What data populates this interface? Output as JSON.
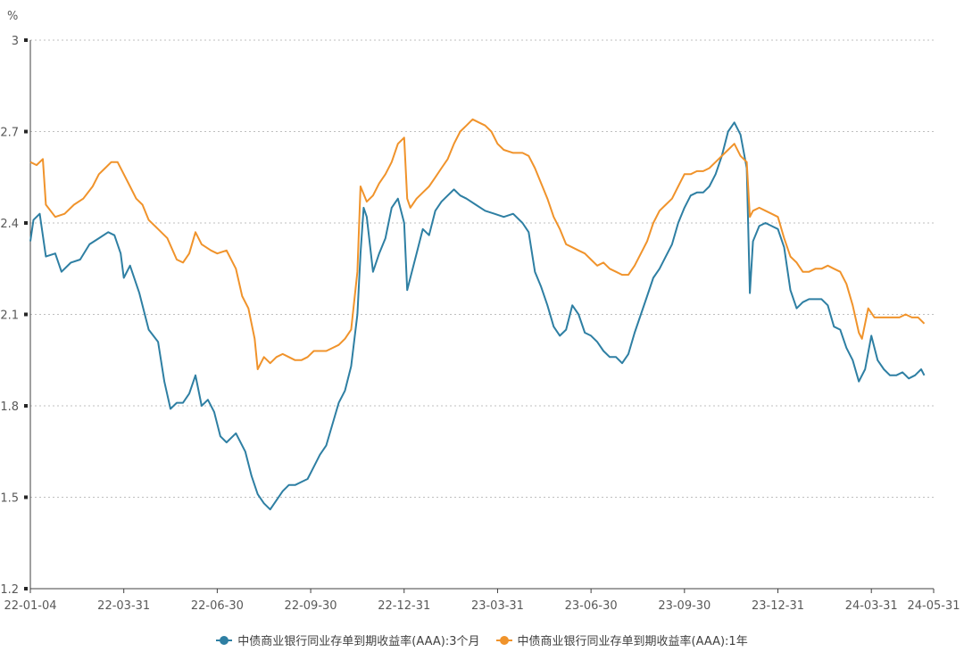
{
  "chart_data": {
    "type": "line",
    "unit": "%",
    "ylim": [
      1.2,
      3.0
    ],
    "y_ticks": [
      "1.2",
      "1.5",
      "1.8",
      "2.1",
      "2.4",
      "2.7",
      "3"
    ],
    "x_tick_labels": [
      "22-01-04",
      "22-03-31",
      "22-06-30",
      "22-09-30",
      "22-12-31",
      "23-03-31",
      "23-06-30",
      "23-09-30",
      "23-12-31",
      "24-03-31",
      "24-05-31"
    ],
    "x_range": [
      0,
      29
    ],
    "grid": true,
    "legend_position": "bottom",
    "series": [
      {
        "name": "中债商业银行同业存单到期收益率(AAA):3个月",
        "color": "#2e7fa3",
        "points": [
          [
            0,
            2.34
          ],
          [
            0.1,
            2.41
          ],
          [
            0.3,
            2.43
          ],
          [
            0.5,
            2.29
          ],
          [
            0.8,
            2.3
          ],
          [
            1.0,
            2.24
          ],
          [
            1.3,
            2.27
          ],
          [
            1.6,
            2.28
          ],
          [
            1.9,
            2.33
          ],
          [
            2.2,
            2.35
          ],
          [
            2.5,
            2.37
          ],
          [
            2.7,
            2.36
          ],
          [
            2.9,
            2.3
          ],
          [
            3.0,
            2.22
          ],
          [
            3.2,
            2.26
          ],
          [
            3.5,
            2.17
          ],
          [
            3.8,
            2.05
          ],
          [
            4.1,
            2.01
          ],
          [
            4.3,
            1.88
          ],
          [
            4.5,
            1.79
          ],
          [
            4.7,
            1.81
          ],
          [
            4.9,
            1.81
          ],
          [
            5.1,
            1.84
          ],
          [
            5.3,
            1.9
          ],
          [
            5.5,
            1.8
          ],
          [
            5.7,
            1.82
          ],
          [
            5.9,
            1.78
          ],
          [
            6.1,
            1.7
          ],
          [
            6.3,
            1.68
          ],
          [
            6.6,
            1.71
          ],
          [
            6.9,
            1.65
          ],
          [
            7.1,
            1.57
          ],
          [
            7.3,
            1.51
          ],
          [
            7.5,
            1.48
          ],
          [
            7.7,
            1.46
          ],
          [
            7.9,
            1.49
          ],
          [
            8.1,
            1.52
          ],
          [
            8.3,
            1.54
          ],
          [
            8.5,
            1.54
          ],
          [
            8.7,
            1.55
          ],
          [
            8.9,
            1.56
          ],
          [
            9.1,
            1.6
          ],
          [
            9.3,
            1.64
          ],
          [
            9.5,
            1.67
          ],
          [
            9.7,
            1.74
          ],
          [
            9.9,
            1.81
          ],
          [
            10.1,
            1.85
          ],
          [
            10.3,
            1.93
          ],
          [
            10.5,
            2.1
          ],
          [
            10.6,
            2.3
          ],
          [
            10.7,
            2.45
          ],
          [
            10.8,
            2.42
          ],
          [
            11.0,
            2.24
          ],
          [
            11.2,
            2.3
          ],
          [
            11.4,
            2.35
          ],
          [
            11.6,
            2.45
          ],
          [
            11.8,
            2.48
          ],
          [
            12.0,
            2.4
          ],
          [
            12.1,
            2.18
          ],
          [
            12.2,
            2.22
          ],
          [
            12.4,
            2.3
          ],
          [
            12.6,
            2.38
          ],
          [
            12.8,
            2.36
          ],
          [
            13.0,
            2.44
          ],
          [
            13.2,
            2.47
          ],
          [
            13.4,
            2.49
          ],
          [
            13.6,
            2.51
          ],
          [
            13.8,
            2.49
          ],
          [
            14.0,
            2.48
          ],
          [
            14.3,
            2.46
          ],
          [
            14.6,
            2.44
          ],
          [
            14.9,
            2.43
          ],
          [
            15.2,
            2.42
          ],
          [
            15.5,
            2.43
          ],
          [
            15.8,
            2.4
          ],
          [
            16.0,
            2.37
          ],
          [
            16.2,
            2.24
          ],
          [
            16.4,
            2.19
          ],
          [
            16.6,
            2.13
          ],
          [
            16.8,
            2.06
          ],
          [
            17.0,
            2.03
          ],
          [
            17.2,
            2.05
          ],
          [
            17.4,
            2.13
          ],
          [
            17.6,
            2.1
          ],
          [
            17.8,
            2.04
          ],
          [
            18.0,
            2.03
          ],
          [
            18.2,
            2.01
          ],
          [
            18.4,
            1.98
          ],
          [
            18.6,
            1.96
          ],
          [
            18.8,
            1.96
          ],
          [
            19.0,
            1.94
          ],
          [
            19.2,
            1.97
          ],
          [
            19.4,
            2.04
          ],
          [
            19.6,
            2.1
          ],
          [
            19.8,
            2.16
          ],
          [
            20.0,
            2.22
          ],
          [
            20.2,
            2.25
          ],
          [
            20.4,
            2.29
          ],
          [
            20.6,
            2.33
          ],
          [
            20.8,
            2.4
          ],
          [
            21.0,
            2.45
          ],
          [
            21.2,
            2.49
          ],
          [
            21.4,
            2.5
          ],
          [
            21.6,
            2.5
          ],
          [
            21.8,
            2.52
          ],
          [
            22.0,
            2.56
          ],
          [
            22.2,
            2.62
          ],
          [
            22.4,
            2.7
          ],
          [
            22.6,
            2.73
          ],
          [
            22.8,
            2.69
          ],
          [
            23.0,
            2.58
          ],
          [
            23.1,
            2.17
          ],
          [
            23.2,
            2.34
          ],
          [
            23.4,
            2.39
          ],
          [
            23.6,
            2.4
          ],
          [
            23.8,
            2.39
          ],
          [
            24.0,
            2.38
          ],
          [
            24.2,
            2.32
          ],
          [
            24.4,
            2.18
          ],
          [
            24.6,
            2.12
          ],
          [
            24.8,
            2.14
          ],
          [
            25.0,
            2.15
          ],
          [
            25.2,
            2.15
          ],
          [
            25.4,
            2.15
          ],
          [
            25.6,
            2.13
          ],
          [
            25.8,
            2.06
          ],
          [
            26.0,
            2.05
          ],
          [
            26.2,
            1.99
          ],
          [
            26.4,
            1.95
          ],
          [
            26.6,
            1.88
          ],
          [
            26.8,
            1.92
          ],
          [
            27.0,
            2.03
          ],
          [
            27.2,
            1.95
          ],
          [
            27.4,
            1.92
          ],
          [
            27.6,
            1.9
          ],
          [
            27.8,
            1.9
          ],
          [
            28.0,
            1.91
          ],
          [
            28.2,
            1.89
          ],
          [
            28.4,
            1.9
          ],
          [
            28.6,
            1.92
          ],
          [
            28.7,
            1.9
          ]
        ]
      },
      {
        "name": "中债商业银行同业存单到期收益率(AAA):1年",
        "color": "#f0932b",
        "points": [
          [
            0,
            2.6
          ],
          [
            0.2,
            2.59
          ],
          [
            0.4,
            2.61
          ],
          [
            0.5,
            2.46
          ],
          [
            0.8,
            2.42
          ],
          [
            1.1,
            2.43
          ],
          [
            1.4,
            2.46
          ],
          [
            1.7,
            2.48
          ],
          [
            2.0,
            2.52
          ],
          [
            2.2,
            2.56
          ],
          [
            2.4,
            2.58
          ],
          [
            2.6,
            2.6
          ],
          [
            2.8,
            2.6
          ],
          [
            3.0,
            2.56
          ],
          [
            3.2,
            2.52
          ],
          [
            3.4,
            2.48
          ],
          [
            3.6,
            2.46
          ],
          [
            3.8,
            2.41
          ],
          [
            4.1,
            2.38
          ],
          [
            4.4,
            2.35
          ],
          [
            4.7,
            2.28
          ],
          [
            4.9,
            2.27
          ],
          [
            5.1,
            2.3
          ],
          [
            5.3,
            2.37
          ],
          [
            5.5,
            2.33
          ],
          [
            5.8,
            2.31
          ],
          [
            6.0,
            2.3
          ],
          [
            6.3,
            2.31
          ],
          [
            6.6,
            2.25
          ],
          [
            6.8,
            2.16
          ],
          [
            7.0,
            2.12
          ],
          [
            7.2,
            2.02
          ],
          [
            7.3,
            1.92
          ],
          [
            7.5,
            1.96
          ],
          [
            7.7,
            1.94
          ],
          [
            7.9,
            1.96
          ],
          [
            8.1,
            1.97
          ],
          [
            8.3,
            1.96
          ],
          [
            8.5,
            1.95
          ],
          [
            8.7,
            1.95
          ],
          [
            8.9,
            1.96
          ],
          [
            9.1,
            1.98
          ],
          [
            9.3,
            1.98
          ],
          [
            9.5,
            1.98
          ],
          [
            9.7,
            1.99
          ],
          [
            9.9,
            2.0
          ],
          [
            10.1,
            2.02
          ],
          [
            10.3,
            2.05
          ],
          [
            10.5,
            2.24
          ],
          [
            10.6,
            2.52
          ],
          [
            10.8,
            2.47
          ],
          [
            11.0,
            2.49
          ],
          [
            11.2,
            2.53
          ],
          [
            11.4,
            2.56
          ],
          [
            11.6,
            2.6
          ],
          [
            11.8,
            2.66
          ],
          [
            12.0,
            2.68
          ],
          [
            12.1,
            2.48
          ],
          [
            12.2,
            2.45
          ],
          [
            12.4,
            2.48
          ],
          [
            12.6,
            2.5
          ],
          [
            12.8,
            2.52
          ],
          [
            13.0,
            2.55
          ],
          [
            13.2,
            2.58
          ],
          [
            13.4,
            2.61
          ],
          [
            13.6,
            2.66
          ],
          [
            13.8,
            2.7
          ],
          [
            14.0,
            2.72
          ],
          [
            14.2,
            2.74
          ],
          [
            14.4,
            2.73
          ],
          [
            14.6,
            2.72
          ],
          [
            14.8,
            2.7
          ],
          [
            15.0,
            2.66
          ],
          [
            15.2,
            2.64
          ],
          [
            15.5,
            2.63
          ],
          [
            15.8,
            2.63
          ],
          [
            16.0,
            2.62
          ],
          [
            16.2,
            2.58
          ],
          [
            16.4,
            2.53
          ],
          [
            16.6,
            2.48
          ],
          [
            16.8,
            2.42
          ],
          [
            17.0,
            2.38
          ],
          [
            17.2,
            2.33
          ],
          [
            17.4,
            2.32
          ],
          [
            17.6,
            2.31
          ],
          [
            17.8,
            2.3
          ],
          [
            18.0,
            2.28
          ],
          [
            18.2,
            2.26
          ],
          [
            18.4,
            2.27
          ],
          [
            18.6,
            2.25
          ],
          [
            18.8,
            2.24
          ],
          [
            19.0,
            2.23
          ],
          [
            19.2,
            2.23
          ],
          [
            19.4,
            2.26
          ],
          [
            19.6,
            2.3
          ],
          [
            19.8,
            2.34
          ],
          [
            20.0,
            2.4
          ],
          [
            20.2,
            2.44
          ],
          [
            20.4,
            2.46
          ],
          [
            20.6,
            2.48
          ],
          [
            20.8,
            2.52
          ],
          [
            21.0,
            2.56
          ],
          [
            21.2,
            2.56
          ],
          [
            21.4,
            2.57
          ],
          [
            21.6,
            2.57
          ],
          [
            21.8,
            2.58
          ],
          [
            22.0,
            2.6
          ],
          [
            22.2,
            2.62
          ],
          [
            22.4,
            2.64
          ],
          [
            22.6,
            2.66
          ],
          [
            22.8,
            2.62
          ],
          [
            23.0,
            2.6
          ],
          [
            23.1,
            2.42
          ],
          [
            23.2,
            2.44
          ],
          [
            23.4,
            2.45
          ],
          [
            23.6,
            2.44
          ],
          [
            23.8,
            2.43
          ],
          [
            24.0,
            2.42
          ],
          [
            24.2,
            2.35
          ],
          [
            24.4,
            2.29
          ],
          [
            24.6,
            2.27
          ],
          [
            24.8,
            2.24
          ],
          [
            25.0,
            2.24
          ],
          [
            25.2,
            2.25
          ],
          [
            25.4,
            2.25
          ],
          [
            25.6,
            2.26
          ],
          [
            25.8,
            2.25
          ],
          [
            26.0,
            2.24
          ],
          [
            26.2,
            2.2
          ],
          [
            26.4,
            2.13
          ],
          [
            26.6,
            2.04
          ],
          [
            26.7,
            2.02
          ],
          [
            26.9,
            2.12
          ],
          [
            27.1,
            2.09
          ],
          [
            27.3,
            2.09
          ],
          [
            27.5,
            2.09
          ],
          [
            27.7,
            2.09
          ],
          [
            27.9,
            2.09
          ],
          [
            28.1,
            2.1
          ],
          [
            28.3,
            2.09
          ],
          [
            28.5,
            2.09
          ],
          [
            28.7,
            2.07
          ]
        ]
      }
    ]
  }
}
